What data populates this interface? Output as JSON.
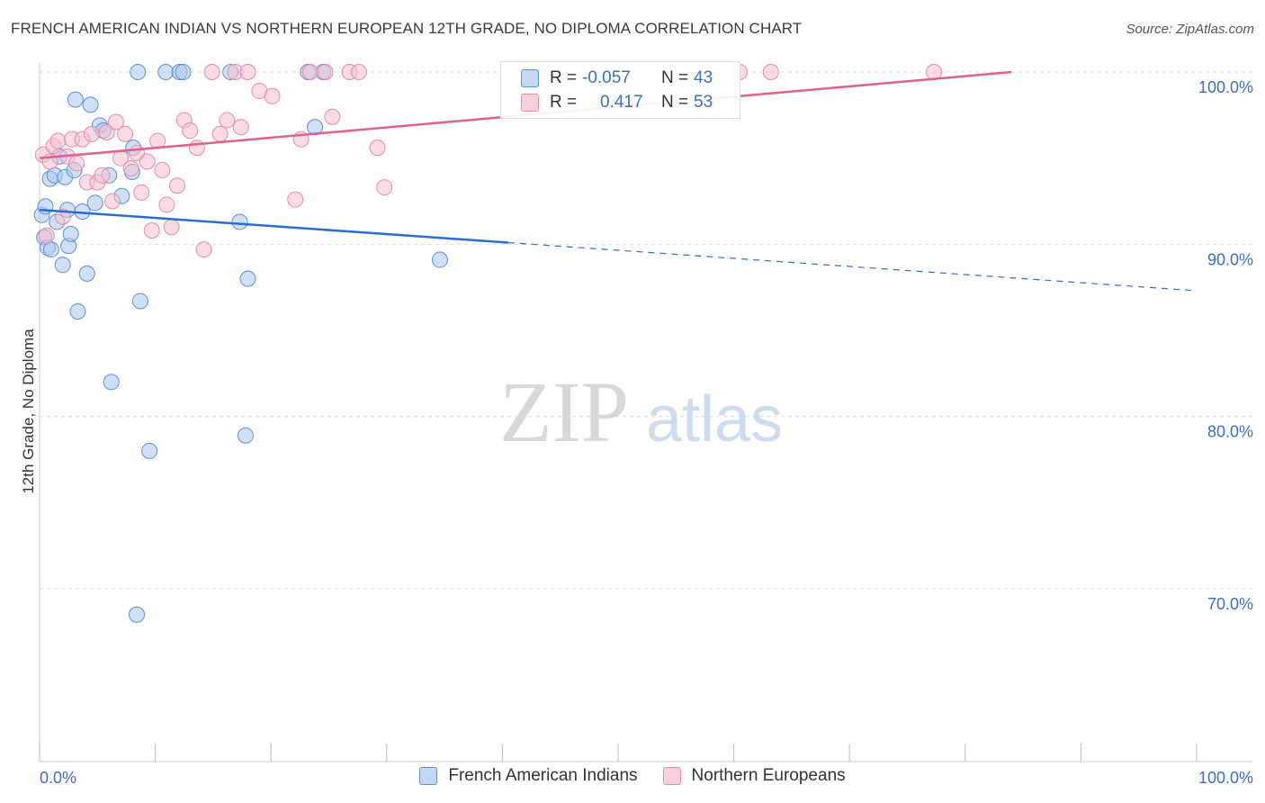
{
  "header": {
    "title": "FRENCH AMERICAN INDIAN VS NORTHERN EUROPEAN 12TH GRADE, NO DIPLOMA CORRELATION CHART",
    "source": "Source: ZipAtlas.com"
  },
  "watermark": {
    "zip": "ZIP",
    "atlas": "atlas"
  },
  "legend": {
    "rows": [
      {
        "r_label": "R =",
        "r_value": "-0.057",
        "n_label": "N =",
        "n_value": "43"
      },
      {
        "r_label": "R =",
        "r_value": "0.417",
        "n_label": "N =",
        "n_value": "53"
      }
    ]
  },
  "chart_data": {
    "type": "scatter",
    "title": "FRENCH AMERICAN INDIAN VS NORTHERN EUROPEAN 12TH GRADE, NO DIPLOMA CORRELATION CHART",
    "xlabel": "",
    "ylabel": "12th Grade, No Diploma",
    "xlim": [
      0,
      100
    ],
    "ylim": [
      60.5,
      101
    ],
    "x_tick_labels": [
      "0.0%",
      "100.0%"
    ],
    "y_ticks": [
      70,
      80,
      90,
      100
    ],
    "y_tick_labels": [
      "70.0%",
      "80.0%",
      "90.0%",
      "100.0%"
    ],
    "colors": {
      "blue_fill": "#a9c8f0",
      "blue_stroke": "#5b8fd6",
      "blue_line": "#2a6fcf",
      "pink_fill": "#f7bfd0",
      "pink_stroke": "#e68aa8",
      "pink_line": "#e06090",
      "grid": "#dcdcdc",
      "axis_label": "#3a6fc4"
    },
    "series": [
      {
        "name": "French American Indians",
        "r": -0.057,
        "n": 43,
        "trend": {
          "x0": 0,
          "y0": 92.0,
          "x_solid_end": 40.5,
          "x1": 100,
          "y1": 87.3
        },
        "points": [
          [
            0.2,
            91.7
          ],
          [
            0.4,
            90.4
          ],
          [
            0.5,
            92.2
          ],
          [
            0.7,
            89.8
          ],
          [
            0.9,
            93.8
          ],
          [
            1.0,
            89.7
          ],
          [
            1.3,
            94.0
          ],
          [
            1.5,
            91.3
          ],
          [
            1.7,
            95.1
          ],
          [
            2.0,
            88.8
          ],
          [
            2.2,
            93.9
          ],
          [
            2.4,
            92.0
          ],
          [
            2.5,
            89.9
          ],
          [
            2.7,
            90.6
          ],
          [
            3.0,
            94.3
          ],
          [
            3.1,
            98.4
          ],
          [
            3.3,
            86.1
          ],
          [
            3.7,
            91.9
          ],
          [
            4.1,
            88.3
          ],
          [
            4.4,
            98.1
          ],
          [
            4.8,
            92.4
          ],
          [
            5.2,
            96.9
          ],
          [
            5.5,
            96.6
          ],
          [
            6.0,
            94.0
          ],
          [
            6.2,
            82.0
          ],
          [
            7.1,
            92.8
          ],
          [
            8.0,
            94.2
          ],
          [
            8.1,
            95.6
          ],
          [
            8.4,
            68.5
          ],
          [
            8.7,
            86.7
          ],
          [
            9.5,
            78.0
          ],
          [
            10.9,
            100.0
          ],
          [
            12.1,
            100.0
          ],
          [
            12.4,
            100.0
          ],
          [
            16.5,
            100.0
          ],
          [
            17.3,
            91.3
          ],
          [
            17.8,
            78.9
          ],
          [
            18.0,
            88.0
          ],
          [
            23.2,
            100.0
          ],
          [
            23.8,
            96.8
          ],
          [
            24.5,
            100.0
          ],
          [
            34.6,
            89.1
          ],
          [
            8.5,
            100.0
          ]
        ]
      },
      {
        "name": "Northern Europeans",
        "r": 0.417,
        "n": 53,
        "trend": {
          "x0": 0,
          "y0": 95.0,
          "x1": 84.0,
          "y1": 100.0
        },
        "points": [
          [
            0.3,
            95.2
          ],
          [
            0.6,
            90.5
          ],
          [
            0.9,
            94.8
          ],
          [
            1.2,
            95.7
          ],
          [
            1.6,
            96.0
          ],
          [
            2.0,
            91.6
          ],
          [
            2.4,
            95.1
          ],
          [
            2.8,
            96.1
          ],
          [
            3.2,
            94.7
          ],
          [
            3.7,
            96.1
          ],
          [
            4.1,
            93.6
          ],
          [
            4.5,
            96.4
          ],
          [
            5.0,
            93.6
          ],
          [
            5.4,
            94.0
          ],
          [
            5.8,
            96.5
          ],
          [
            6.3,
            92.5
          ],
          [
            6.6,
            97.1
          ],
          [
            7.0,
            95.0
          ],
          [
            7.4,
            96.4
          ],
          [
            7.9,
            94.4
          ],
          [
            8.4,
            95.3
          ],
          [
            8.8,
            93.0
          ],
          [
            9.3,
            94.8
          ],
          [
            9.7,
            90.8
          ],
          [
            10.2,
            96.0
          ],
          [
            10.6,
            94.3
          ],
          [
            11.0,
            92.3
          ],
          [
            11.4,
            91.0
          ],
          [
            11.9,
            93.4
          ],
          [
            12.5,
            97.2
          ],
          [
            13.0,
            96.6
          ],
          [
            13.6,
            95.6
          ],
          [
            14.2,
            89.7
          ],
          [
            14.9,
            100.0
          ],
          [
            15.6,
            96.4
          ],
          [
            16.2,
            97.2
          ],
          [
            16.9,
            100.0
          ],
          [
            17.4,
            96.8
          ],
          [
            18.0,
            100.0
          ],
          [
            19.0,
            98.9
          ],
          [
            20.1,
            98.6
          ],
          [
            22.1,
            92.6
          ],
          [
            22.6,
            96.1
          ],
          [
            23.4,
            100.0
          ],
          [
            24.7,
            100.0
          ],
          [
            25.3,
            97.4
          ],
          [
            26.8,
            100.0
          ],
          [
            27.6,
            100.0
          ],
          [
            29.2,
            95.6
          ],
          [
            29.8,
            93.3
          ],
          [
            60.5,
            100.0
          ],
          [
            63.2,
            100.0
          ],
          [
            77.3,
            100.0
          ]
        ]
      }
    ]
  }
}
